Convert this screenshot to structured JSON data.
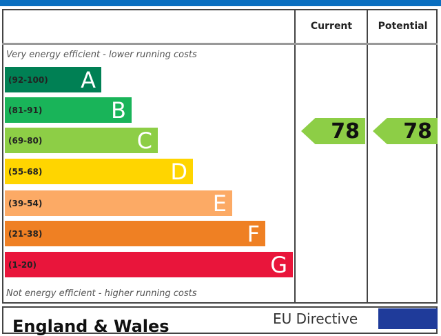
{
  "header": {
    "current": "Current",
    "potential": "Potential"
  },
  "notes": {
    "top": "Very energy efficient - lower running costs",
    "bottom": "Not energy efficient - higher running costs"
  },
  "footer": {
    "region": "England & Wales",
    "directive": "EU Directive"
  },
  "chart_data": {
    "type": "bar",
    "categories": [
      "A",
      "B",
      "C",
      "D",
      "E",
      "F",
      "G"
    ],
    "bands": [
      {
        "letter": "A",
        "range": "(92-100)",
        "color": "#008054"
      },
      {
        "letter": "B",
        "range": "(81-91)",
        "color": "#19b459"
      },
      {
        "letter": "C",
        "range": "(69-80)",
        "color": "#8dce46"
      },
      {
        "letter": "D",
        "range": "(55-68)",
        "color": "#ffd500"
      },
      {
        "letter": "E",
        "range": "(39-54)",
        "color": "#fcaa65"
      },
      {
        "letter": "F",
        "range": "(21-38)",
        "color": "#ef8023"
      },
      {
        "letter": "G",
        "range": "(1-20)",
        "color": "#e9153b"
      }
    ],
    "current": {
      "value": 78,
      "band": "C",
      "color": "#8dce46"
    },
    "potential": {
      "value": 78,
      "band": "C",
      "color": "#8dce46"
    }
  }
}
